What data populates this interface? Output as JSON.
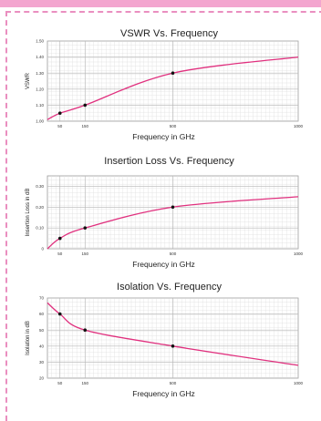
{
  "colors": {
    "accent": "#f3a5cf",
    "border": "#ea8fc0",
    "curve": "#e0307e",
    "grid": "#c8c8c8"
  },
  "chart_data": [
    {
      "type": "line",
      "title": "VSWR Vs. Frequency",
      "xlabel": "Frequency in GHz",
      "ylabel": "VSWR",
      "xlim": [
        0,
        1000
      ],
      "ylim": [
        1.0,
        1.5
      ],
      "xticks": [
        50,
        150,
        500,
        1000
      ],
      "xtick_labels": [
        "50",
        "150",
        "500",
        "1000"
      ],
      "yticks": [
        1.0,
        1.1,
        1.2,
        1.3,
        1.4,
        1.5
      ],
      "ytick_labels": [
        "1.00",
        "1.10",
        "1.20",
        "1.30",
        "1.40",
        "1.50"
      ],
      "grid": true,
      "series": [
        {
          "x": [
            0,
            50,
            150,
            500,
            1000
          ],
          "values": [
            1.01,
            1.05,
            1.1,
            1.3,
            1.4
          ],
          "markers": [
            50,
            150,
            500
          ]
        }
      ]
    },
    {
      "type": "line",
      "title": "Insertion Loss Vs. Frequency",
      "xlabel": "Frequency in GHz",
      "ylabel": "Insertion Loss in dB",
      "xlim": [
        0,
        1000
      ],
      "ylim": [
        0.0,
        0.35
      ],
      "xticks": [
        50,
        150,
        500,
        1000
      ],
      "xtick_labels": [
        "50",
        "150",
        "500",
        "1000"
      ],
      "yticks": [
        0.0,
        0.1,
        0.2,
        0.3
      ],
      "ytick_labels": [
        "0",
        "0.10",
        "0.20",
        "0.30"
      ],
      "grid": true,
      "series": [
        {
          "x": [
            0,
            50,
            150,
            500,
            1000
          ],
          "values": [
            0.0,
            0.05,
            0.1,
            0.2,
            0.25
          ],
          "markers": [
            50,
            150,
            500
          ]
        }
      ]
    },
    {
      "type": "line",
      "title": "Isolation Vs. Frequency",
      "xlabel": "Frequency in GHz",
      "ylabel": "Isolation in dB",
      "xlim": [
        0,
        1000
      ],
      "ylim": [
        20,
        70
      ],
      "xticks": [
        50,
        150,
        500,
        1000
      ],
      "xtick_labels": [
        "50",
        "150",
        "500",
        "1000"
      ],
      "yticks": [
        20,
        30,
        40,
        50,
        60,
        70
      ],
      "ytick_labels": [
        "20",
        "30",
        "40",
        "50",
        "60",
        "70"
      ],
      "grid": true,
      "series": [
        {
          "x": [
            0,
            50,
            150,
            500,
            1000
          ],
          "values": [
            67,
            60,
            50,
            40,
            28
          ],
          "markers": [
            50,
            150,
            500
          ]
        }
      ]
    }
  ]
}
